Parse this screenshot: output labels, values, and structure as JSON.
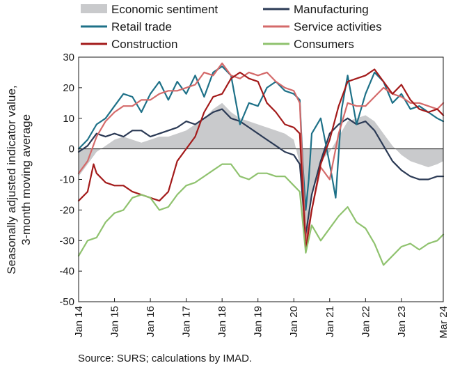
{
  "chart_data": {
    "type": "line",
    "ylabel": "Seasonally adjusted indicator value, 3-month moving average",
    "ylim": [
      -50,
      30
    ],
    "yticks": [
      30,
      20,
      10,
      0,
      -10,
      -20,
      -30,
      -40,
      -50
    ],
    "xlim": [
      "2014-01",
      "2024-03"
    ],
    "xticks": [
      {
        "label": "Jan 14",
        "date": "2014-01"
      },
      {
        "label": "Jan 15",
        "date": "2015-01"
      },
      {
        "label": "Jan 16",
        "date": "2016-01"
      },
      {
        "label": "Jan 17",
        "date": "2017-01"
      },
      {
        "label": "Jan 18",
        "date": "2018-01"
      },
      {
        "label": "Jan 19",
        "date": "2019-01"
      },
      {
        "label": "Jan 20",
        "date": "2020-01"
      },
      {
        "label": "Jan 21",
        "date": "2021-01"
      },
      {
        "label": "Jan 22",
        "date": "2022-01"
      },
      {
        "label": "Jan 23",
        "date": "2023-01"
      },
      {
        "label": "Mar 24",
        "date": "2024-03"
      }
    ],
    "legend_position": "top",
    "grid": false,
    "series": [
      {
        "name": "Economic sentiment",
        "kind": "area",
        "color": "#c9cacc",
        "points": [
          [
            "2014-01",
            -9
          ],
          [
            "2014-04",
            -5
          ],
          [
            "2014-07",
            -1
          ],
          [
            "2014-10",
            1
          ],
          [
            "2015-01",
            3
          ],
          [
            "2015-04",
            4
          ],
          [
            "2015-07",
            3
          ],
          [
            "2015-10",
            2
          ],
          [
            "2016-01",
            3
          ],
          [
            "2016-04",
            4
          ],
          [
            "2016-07",
            4
          ],
          [
            "2016-10",
            5
          ],
          [
            "2017-01",
            6
          ],
          [
            "2017-04",
            8
          ],
          [
            "2017-07",
            10
          ],
          [
            "2017-10",
            13
          ],
          [
            "2018-01",
            15
          ],
          [
            "2018-04",
            12
          ],
          [
            "2018-07",
            10
          ],
          [
            "2018-10",
            9
          ],
          [
            "2019-01",
            8
          ],
          [
            "2019-04",
            7
          ],
          [
            "2019-07",
            6
          ],
          [
            "2019-10",
            5
          ],
          [
            "2020-01",
            3
          ],
          [
            "2020-03",
            -5
          ],
          [
            "2020-04",
            -25
          ],
          [
            "2020-05",
            -26
          ],
          [
            "2020-07",
            -15
          ],
          [
            "2020-10",
            -4
          ],
          [
            "2021-01",
            -1
          ],
          [
            "2021-04",
            4
          ],
          [
            "2021-07",
            9
          ],
          [
            "2021-10",
            10
          ],
          [
            "2022-01",
            11
          ],
          [
            "2022-04",
            9
          ],
          [
            "2022-07",
            5
          ],
          [
            "2022-10",
            1
          ],
          [
            "2023-01",
            -2
          ],
          [
            "2023-04",
            -4
          ],
          [
            "2023-07",
            -5
          ],
          [
            "2023-10",
            -6
          ],
          [
            "2024-01",
            -5
          ],
          [
            "2024-03",
            -4
          ]
        ]
      },
      {
        "name": "Manufacturing",
        "kind": "line",
        "color": "#2b3a55",
        "points": [
          [
            "2014-01",
            -1
          ],
          [
            "2014-04",
            1
          ],
          [
            "2014-07",
            5
          ],
          [
            "2014-10",
            4
          ],
          [
            "2015-01",
            5
          ],
          [
            "2015-04",
            4
          ],
          [
            "2015-07",
            6
          ],
          [
            "2015-10",
            6
          ],
          [
            "2016-01",
            4
          ],
          [
            "2016-04",
            5
          ],
          [
            "2016-07",
            6
          ],
          [
            "2016-10",
            7
          ],
          [
            "2017-01",
            9
          ],
          [
            "2017-04",
            8
          ],
          [
            "2017-07",
            10
          ],
          [
            "2017-10",
            12
          ],
          [
            "2018-01",
            13
          ],
          [
            "2018-04",
            10
          ],
          [
            "2018-07",
            9
          ],
          [
            "2018-10",
            7
          ],
          [
            "2019-01",
            5
          ],
          [
            "2019-04",
            3
          ],
          [
            "2019-07",
            1
          ],
          [
            "2019-10",
            -1
          ],
          [
            "2020-01",
            -2
          ],
          [
            "2020-03",
            -5
          ],
          [
            "2020-05",
            -28
          ],
          [
            "2020-07",
            -15
          ],
          [
            "2020-10",
            -4
          ],
          [
            "2021-01",
            5
          ],
          [
            "2021-04",
            8
          ],
          [
            "2021-07",
            10
          ],
          [
            "2021-10",
            8
          ],
          [
            "2022-01",
            9
          ],
          [
            "2022-04",
            6
          ],
          [
            "2022-07",
            1
          ],
          [
            "2022-10",
            -4
          ],
          [
            "2023-01",
            -7
          ],
          [
            "2023-04",
            -9
          ],
          [
            "2023-07",
            -10
          ],
          [
            "2023-10",
            -10
          ],
          [
            "2024-01",
            -9
          ],
          [
            "2024-03",
            -9
          ]
        ]
      },
      {
        "name": "Retail trade",
        "kind": "line",
        "color": "#1e7188",
        "points": [
          [
            "2014-01",
            0
          ],
          [
            "2014-04",
            3
          ],
          [
            "2014-07",
            8
          ],
          [
            "2014-10",
            10
          ],
          [
            "2015-01",
            14
          ],
          [
            "2015-04",
            18
          ],
          [
            "2015-07",
            17
          ],
          [
            "2015-10",
            12
          ],
          [
            "2016-01",
            18
          ],
          [
            "2016-04",
            22
          ],
          [
            "2016-07",
            16
          ],
          [
            "2016-10",
            22
          ],
          [
            "2017-01",
            18
          ],
          [
            "2017-04",
            24
          ],
          [
            "2017-07",
            17
          ],
          [
            "2017-10",
            25
          ],
          [
            "2018-01",
            27
          ],
          [
            "2018-04",
            24
          ],
          [
            "2018-07",
            8
          ],
          [
            "2018-10",
            15
          ],
          [
            "2019-01",
            14
          ],
          [
            "2019-04",
            20
          ],
          [
            "2019-07",
            22
          ],
          [
            "2019-10",
            19
          ],
          [
            "2020-01",
            18
          ],
          [
            "2020-03",
            16
          ],
          [
            "2020-04",
            -5
          ],
          [
            "2020-05",
            -20
          ],
          [
            "2020-06",
            -10
          ],
          [
            "2020-07",
            5
          ],
          [
            "2020-10",
            10
          ],
          [
            "2021-01",
            -5
          ],
          [
            "2021-03",
            -16
          ],
          [
            "2021-05",
            13
          ],
          [
            "2021-07",
            24
          ],
          [
            "2021-10",
            8
          ],
          [
            "2022-01",
            18
          ],
          [
            "2022-04",
            25
          ],
          [
            "2022-07",
            22
          ],
          [
            "2022-10",
            15
          ],
          [
            "2023-01",
            18
          ],
          [
            "2023-04",
            13
          ],
          [
            "2023-07",
            14
          ],
          [
            "2023-10",
            12
          ],
          [
            "2024-01",
            10
          ],
          [
            "2024-03",
            9
          ]
        ]
      },
      {
        "name": "Service activities",
        "kind": "line",
        "color": "#d46a6a",
        "points": [
          [
            "2014-01",
            -8
          ],
          [
            "2014-04",
            -4
          ],
          [
            "2014-07",
            4
          ],
          [
            "2014-10",
            9
          ],
          [
            "2015-01",
            12
          ],
          [
            "2015-04",
            14
          ],
          [
            "2015-07",
            14
          ],
          [
            "2015-10",
            16
          ],
          [
            "2016-01",
            16
          ],
          [
            "2016-04",
            18
          ],
          [
            "2016-07",
            19
          ],
          [
            "2016-10",
            19
          ],
          [
            "2017-01",
            20
          ],
          [
            "2017-04",
            21
          ],
          [
            "2017-07",
            25
          ],
          [
            "2017-10",
            24
          ],
          [
            "2018-01",
            28
          ],
          [
            "2018-04",
            24
          ],
          [
            "2018-07",
            23
          ],
          [
            "2018-10",
            25
          ],
          [
            "2019-01",
            24
          ],
          [
            "2019-04",
            25
          ],
          [
            "2019-07",
            22
          ],
          [
            "2019-10",
            20
          ],
          [
            "2020-01",
            19
          ],
          [
            "2020-03",
            15
          ],
          [
            "2020-05",
            -30
          ],
          [
            "2020-07",
            -20
          ],
          [
            "2020-10",
            -6
          ],
          [
            "2021-01",
            -10
          ],
          [
            "2021-04",
            5
          ],
          [
            "2021-07",
            15
          ],
          [
            "2021-10",
            14
          ],
          [
            "2022-01",
            14
          ],
          [
            "2022-04",
            17
          ],
          [
            "2022-07",
            20
          ],
          [
            "2022-10",
            18
          ],
          [
            "2023-01",
            17
          ],
          [
            "2023-04",
            15
          ],
          [
            "2023-07",
            15
          ],
          [
            "2023-10",
            14
          ],
          [
            "2024-01",
            13
          ],
          [
            "2024-03",
            15
          ]
        ]
      },
      {
        "name": "Construction",
        "kind": "line",
        "color": "#a31a1a",
        "points": [
          [
            "2014-01",
            -17
          ],
          [
            "2014-04",
            -14
          ],
          [
            "2014-06",
            -5
          ],
          [
            "2014-07",
            -8
          ],
          [
            "2014-10",
            -11
          ],
          [
            "2015-01",
            -12
          ],
          [
            "2015-04",
            -12
          ],
          [
            "2015-07",
            -14
          ],
          [
            "2015-10",
            -15
          ],
          [
            "2016-01",
            -16
          ],
          [
            "2016-04",
            -17
          ],
          [
            "2016-07",
            -14
          ],
          [
            "2016-10",
            -4
          ],
          [
            "2017-01",
            0
          ],
          [
            "2017-04",
            4
          ],
          [
            "2017-07",
            12
          ],
          [
            "2017-10",
            17
          ],
          [
            "2018-01",
            18
          ],
          [
            "2018-04",
            23
          ],
          [
            "2018-07",
            25
          ],
          [
            "2018-10",
            23
          ],
          [
            "2019-01",
            22
          ],
          [
            "2019-04",
            15
          ],
          [
            "2019-07",
            12
          ],
          [
            "2019-10",
            8
          ],
          [
            "2020-01",
            7
          ],
          [
            "2020-03",
            5
          ],
          [
            "2020-05",
            -33
          ],
          [
            "2020-07",
            -20
          ],
          [
            "2020-10",
            -5
          ],
          [
            "2021-01",
            3
          ],
          [
            "2021-04",
            14
          ],
          [
            "2021-07",
            22
          ],
          [
            "2021-10",
            23
          ],
          [
            "2022-01",
            24
          ],
          [
            "2022-04",
            26
          ],
          [
            "2022-07",
            22
          ],
          [
            "2022-10",
            18
          ],
          [
            "2023-01",
            21
          ],
          [
            "2023-04",
            16
          ],
          [
            "2023-07",
            13
          ],
          [
            "2023-10",
            12
          ],
          [
            "2024-01",
            13
          ],
          [
            "2024-03",
            11
          ]
        ]
      },
      {
        "name": "Consumers",
        "kind": "line",
        "color": "#8fc26e",
        "points": [
          [
            "2014-01",
            -35
          ],
          [
            "2014-04",
            -30
          ],
          [
            "2014-07",
            -29
          ],
          [
            "2014-10",
            -24
          ],
          [
            "2015-01",
            -21
          ],
          [
            "2015-04",
            -20
          ],
          [
            "2015-07",
            -16
          ],
          [
            "2015-10",
            -15
          ],
          [
            "2016-01",
            -16
          ],
          [
            "2016-04",
            -20
          ],
          [
            "2016-07",
            -19
          ],
          [
            "2016-10",
            -15
          ],
          [
            "2017-01",
            -12
          ],
          [
            "2017-04",
            -11
          ],
          [
            "2017-07",
            -9
          ],
          [
            "2017-10",
            -7
          ],
          [
            "2018-01",
            -5
          ],
          [
            "2018-04",
            -5
          ],
          [
            "2018-07",
            -9
          ],
          [
            "2018-10",
            -10
          ],
          [
            "2019-01",
            -8
          ],
          [
            "2019-04",
            -8
          ],
          [
            "2019-07",
            -9
          ],
          [
            "2019-10",
            -9
          ],
          [
            "2020-01",
            -12
          ],
          [
            "2020-03",
            -14
          ],
          [
            "2020-05",
            -34
          ],
          [
            "2020-07",
            -25
          ],
          [
            "2020-10",
            -30
          ],
          [
            "2021-01",
            -26
          ],
          [
            "2021-04",
            -22
          ],
          [
            "2021-07",
            -19
          ],
          [
            "2021-10",
            -24
          ],
          [
            "2022-01",
            -26
          ],
          [
            "2022-04",
            -31
          ],
          [
            "2022-07",
            -38
          ],
          [
            "2022-10",
            -35
          ],
          [
            "2023-01",
            -32
          ],
          [
            "2023-04",
            -31
          ],
          [
            "2023-07",
            -33
          ],
          [
            "2023-10",
            -31
          ],
          [
            "2024-01",
            -30
          ],
          [
            "2024-03",
            -28
          ]
        ]
      }
    ]
  },
  "source": "Source: SURS; calculations by IMAD."
}
